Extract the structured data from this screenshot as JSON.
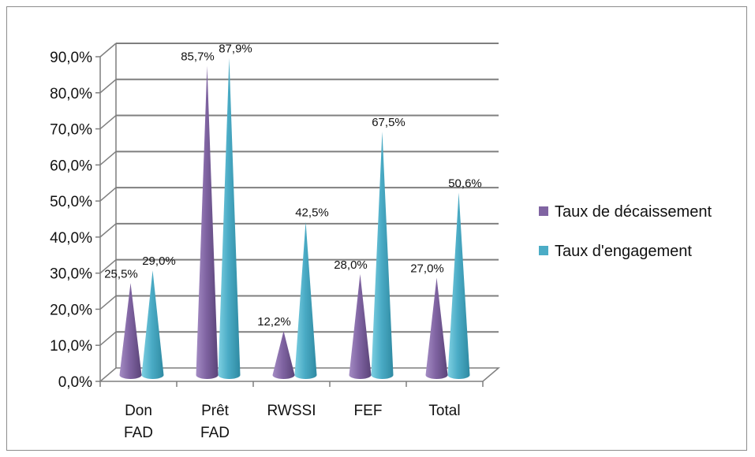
{
  "chart_data": {
    "type": "bar",
    "bar_shape": "cone",
    "categories": [
      [
        "Don",
        "FAD"
      ],
      [
        "Prêt",
        "FAD"
      ],
      [
        "RWSSI"
      ],
      [
        "FEF"
      ],
      [
        "Total"
      ]
    ],
    "series": [
      {
        "name": "Taux de décaissement",
        "values": [
          25.5,
          85.7,
          12.2,
          28.0,
          27.0
        ],
        "labels": [
          "25,5%",
          "85,7%",
          "12,2%",
          "28,0%",
          "27,0%"
        ],
        "color": "#8064a2"
      },
      {
        "name": "Taux d'engagement",
        "values": [
          29.0,
          87.9,
          42.5,
          67.5,
          50.6
        ],
        "labels": [
          "29,0%",
          "87,9%",
          "42,5%",
          "67,5%",
          "50,6%"
        ],
        "color": "#4bacc6"
      }
    ],
    "yticks": [
      "0,0%",
      "10,0%",
      "20,0%",
      "30,0%",
      "40,0%",
      "50,0%",
      "60,0%",
      "70,0%",
      "80,0%",
      "90,0%"
    ],
    "ylim": [
      0,
      90
    ],
    "grid": true,
    "legend_position": "right"
  }
}
